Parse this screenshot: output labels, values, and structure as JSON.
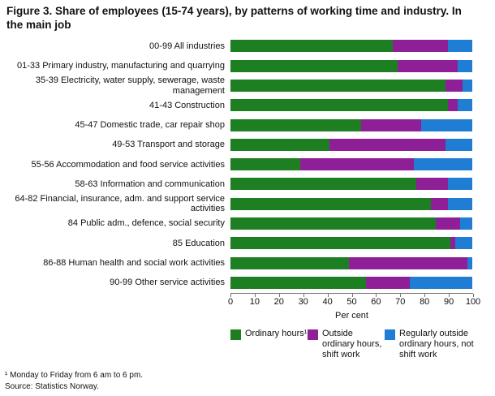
{
  "figure": {
    "title": "Figure 3.  Share of employees (15-74 years), by patterns of working time and industry. In the main job",
    "footnote": "¹ Monday to Friday from 6 am to 6 pm.",
    "source": "Source: Statistics Norway."
  },
  "chart_data": {
    "type": "bar",
    "orientation": "horizontal",
    "stacked": true,
    "title": "Figure 3. Share of employees (15-74 years), by patterns of working time and industry. In the main job",
    "xlabel": "Per cent",
    "xlim": [
      0,
      100
    ],
    "xticks": [
      0,
      10,
      20,
      30,
      40,
      50,
      60,
      70,
      80,
      90,
      100
    ],
    "grid": false,
    "legend_position": "bottom",
    "categories": [
      "00-99 All industries",
      "01-33 Primary industry, manufacturing and quarrying",
      "35-39 Electricity, water supply, sewerage, waste management",
      "41-43 Construction",
      "45-47 Domestic trade, car repair shop",
      "49-53 Transport and storage",
      "55-56 Accommodation and food service activities",
      "58-63 Information and communication",
      "64-82 Financial, insurance, adm. and support service activities",
      "84 Public adm., defence, social security",
      "85 Education",
      "86-88 Human health and social work activities",
      "90-99 Other service activities"
    ],
    "series": [
      {
        "name": "Ordinary hours¹",
        "color": "#1e7e22",
        "values": [
          67,
          69,
          89,
          90,
          54,
          41,
          29,
          77,
          83,
          85,
          91,
          49,
          56
        ]
      },
      {
        "name": "Outside ordinary hours, shift work",
        "color": "#8e1f96",
        "values": [
          23,
          25,
          7,
          4,
          25,
          48,
          47,
          13,
          7,
          10,
          2,
          49,
          18
        ]
      },
      {
        "name": "Regularly outside ordinary hours, not shift work",
        "color": "#1f7dd4",
        "values": [
          10,
          6,
          4,
          6,
          21,
          11,
          24,
          10,
          10,
          5,
          7,
          2,
          26
        ]
      }
    ]
  }
}
